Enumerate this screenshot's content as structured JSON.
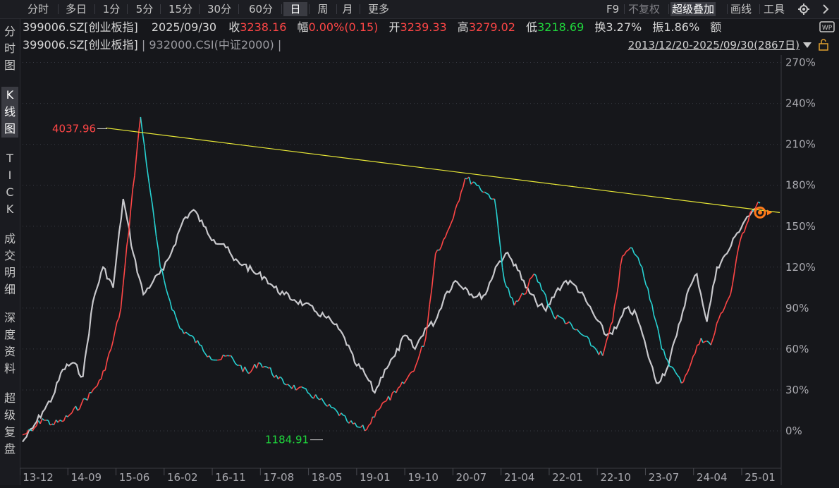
{
  "toolbar": {
    "periods": [
      "分时",
      "多日",
      "1分",
      "5分",
      "15分",
      "30分",
      "60分",
      "日",
      "周",
      "月",
      "更多"
    ],
    "active_period": "日",
    "right": {
      "f9": "F9",
      "fuquan": "不复权",
      "overlay": "超级叠加",
      "draw": "画线",
      "tools": "工具"
    }
  },
  "sidebar": {
    "items": [
      "分时图",
      "K线图",
      "TICK",
      "成交明细",
      "深度资料",
      "超级复盘"
    ],
    "active": "K线图"
  },
  "quote": {
    "code": "399006.SZ[创业板指]",
    "date": "2025/09/30",
    "close_label": "收",
    "close": "3238.16",
    "change_label": "幅",
    "change": "0.00%(0.15)",
    "open_label": "开",
    "open": "3239.33",
    "high_label": "高",
    "high": "3279.02",
    "low_label": "低",
    "low": "3218.69",
    "turnover_label": "换",
    "turnover": "3.27%",
    "amplitude_label": "振",
    "amplitude": "1.86%",
    "amount_label": "额"
  },
  "overlay_line": {
    "main": "399006.SZ[创业板指]",
    "overlay": "932000.CSI(中证2000)",
    "range": "2013/12/20-2025/09/30(2867日)"
  },
  "colors": {
    "up": "#ff4646",
    "down": "#27d3d3",
    "overlay": "#c8c8cc",
    "trend": "#e8e836",
    "bg": "#16171b"
  },
  "chart_data": {
    "type": "line",
    "y_axis_labels": [
      "270%",
      "240%",
      "210%",
      "180%",
      "150%",
      "120%",
      "90%",
      "60%",
      "30%",
      "0%"
    ],
    "y_axis_values": [
      270,
      240,
      210,
      180,
      150,
      120,
      90,
      60,
      30,
      0
    ],
    "x_axis_labels": [
      "13-12",
      "14-09",
      "15-06",
      "16-02",
      "16-11",
      "17-08",
      "18-05",
      "19-01",
      "19-10",
      "20-07",
      "21-04",
      "22-01",
      "22-10",
      "23-07",
      "24-04",
      "25-01"
    ],
    "annotations": {
      "high": "4037.96",
      "low": "1184.91"
    },
    "series": [
      {
        "values": [
          -3,
          0,
          9,
          5,
          7,
          13,
          20,
          28,
          38,
          60,
          90,
          162,
          230,
          175,
          120,
          95,
          75,
          70,
          63,
          55,
          52,
          55,
          48,
          42,
          50,
          46,
          38,
          34,
          31,
          28,
          24,
          18,
          14,
          7,
          3,
          1,
          15,
          22,
          28,
          37,
          48,
          68,
          130,
          142,
          162,
          185,
          182,
          175,
          170,
          110,
          92,
          100,
          115,
          102,
          84,
          82,
          75,
          70,
          62,
          55,
          80,
          128,
          134,
          120,
          93,
          60,
          47,
          35,
          50,
          68,
          63,
          86,
          100,
          140,
          160,
          167
        ]
      },
      {
        "values": [
          -8,
          2,
          14,
          25,
          45,
          50,
          40,
          95,
          120,
          105,
          170,
          130,
          100,
          110,
          118,
          135,
          155,
          162,
          150,
          140,
          137,
          125,
          122,
          116,
          113,
          105,
          100,
          96,
          93,
          88,
          84,
          78,
          68,
          50,
          42,
          28,
          45,
          55,
          70,
          60,
          75,
          80,
          100,
          110,
          105,
          98,
          100,
          120,
          130,
          122,
          105,
          95,
          88,
          102,
          110,
          106,
          95,
          82,
          70,
          75,
          90,
          85,
          60,
          35,
          45,
          70,
          100,
          115,
          80,
          120,
          130,
          145,
          157,
          162
        ]
      }
    ]
  }
}
